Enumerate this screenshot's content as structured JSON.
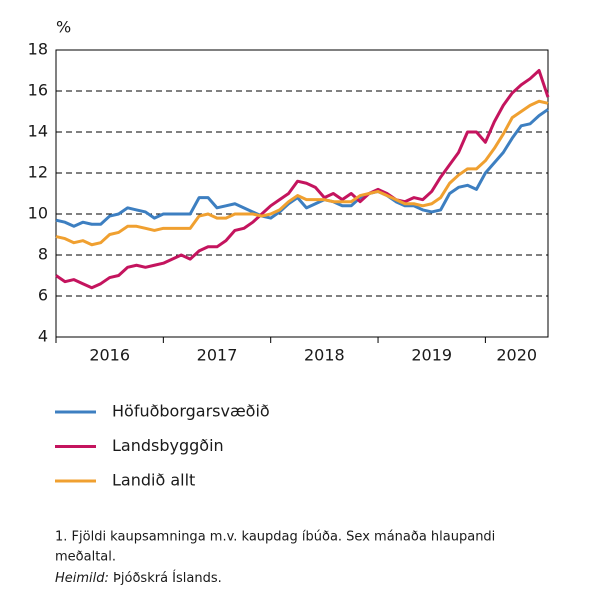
{
  "chart_data": {
    "type": "line",
    "y_unit": "%",
    "x": [
      2016,
      2016.0833,
      2016.1667,
      2016.25,
      2016.3333,
      2016.4167,
      2016.5,
      2016.5833,
      2016.6667,
      2016.75,
      2016.8333,
      2016.9167,
      2017,
      2017.0833,
      2017.1667,
      2017.25,
      2017.3333,
      2017.4167,
      2017.5,
      2017.5833,
      2017.6667,
      2017.75,
      2017.8333,
      2017.9167,
      2018,
      2018.0833,
      2018.1667,
      2018.25,
      2018.3333,
      2018.4167,
      2018.5,
      2018.5833,
      2018.6667,
      2018.75,
      2018.8333,
      2018.9167,
      2019,
      2019.0833,
      2019.1667,
      2019.25,
      2019.3333,
      2019.4167,
      2019.5,
      2019.5833,
      2019.6667,
      2019.75,
      2019.8333,
      2019.9167,
      2020,
      2020.0833,
      2020.1667,
      2020.25,
      2020.3333,
      2020.4167,
      2020.5,
      2020.5833
    ],
    "xlim": [
      2016,
      2020.5833
    ],
    "xticks": [
      2016,
      2017,
      2018,
      2019,
      2020
    ],
    "ylim": [
      4,
      18
    ],
    "yticks": [
      4,
      6,
      8,
      10,
      12,
      14,
      16,
      18
    ],
    "grid": true,
    "series": [
      {
        "name": "Höfuðborgarsvæðið",
        "color": "#3d7fc1",
        "values": [
          9.7,
          9.6,
          9.4,
          9.6,
          9.5,
          9.5,
          9.9,
          10.0,
          10.3,
          10.2,
          10.1,
          9.8,
          10.0,
          10.0,
          10.0,
          10.0,
          10.8,
          10.8,
          10.3,
          10.4,
          10.5,
          10.3,
          10.1,
          9.9,
          9.8,
          10.1,
          10.5,
          10.8,
          10.3,
          10.5,
          10.7,
          10.6,
          10.4,
          10.4,
          10.8,
          11.0,
          11.1,
          10.9,
          10.6,
          10.4,
          10.4,
          10.2,
          10.1,
          10.2,
          11.0,
          11.3,
          11.4,
          11.2,
          12.0,
          12.5,
          13.0,
          13.7,
          14.3,
          14.4,
          14.8,
          15.1
        ]
      },
      {
        "name": "Landsbyggðin",
        "color": "#c4145e",
        "values": [
          7.0,
          6.7,
          6.8,
          6.6,
          6.4,
          6.6,
          6.9,
          7.0,
          7.4,
          7.5,
          7.4,
          7.5,
          7.6,
          7.8,
          8.0,
          7.8,
          8.2,
          8.4,
          8.4,
          8.7,
          9.2,
          9.3,
          9.6,
          10.0,
          10.4,
          10.7,
          11.0,
          11.6,
          11.5,
          11.3,
          10.8,
          11.0,
          10.7,
          11.0,
          10.6,
          11.0,
          11.2,
          11.0,
          10.7,
          10.6,
          10.8,
          10.7,
          11.1,
          11.8,
          12.4,
          13.0,
          14.0,
          14.0,
          13.5,
          14.5,
          15.3,
          15.9,
          16.3,
          16.6,
          17.0,
          15.7
        ]
      },
      {
        "name": "Landið allt",
        "color": "#f0a030",
        "values": [
          8.9,
          8.8,
          8.6,
          8.7,
          8.5,
          8.6,
          9.0,
          9.1,
          9.4,
          9.4,
          9.3,
          9.2,
          9.3,
          9.3,
          9.3,
          9.3,
          9.9,
          10.0,
          9.8,
          9.8,
          10.0,
          10.0,
          10.0,
          9.9,
          10.0,
          10.2,
          10.6,
          10.9,
          10.7,
          10.7,
          10.7,
          10.6,
          10.6,
          10.6,
          10.9,
          11.0,
          11.1,
          10.9,
          10.7,
          10.5,
          10.5,
          10.4,
          10.5,
          10.8,
          11.5,
          11.9,
          12.2,
          12.2,
          12.6,
          13.2,
          13.9,
          14.7,
          15.0,
          15.3,
          15.5,
          15.4
        ]
      }
    ],
    "notes": [
      "1. Fjöldi kaupsamninga m.v. kaupdag íbúða. Sex mánaða hlaupandi",
      "meðaltal."
    ],
    "source_label": "Heimild:",
    "source": "Þjóðskrá Íslands."
  }
}
